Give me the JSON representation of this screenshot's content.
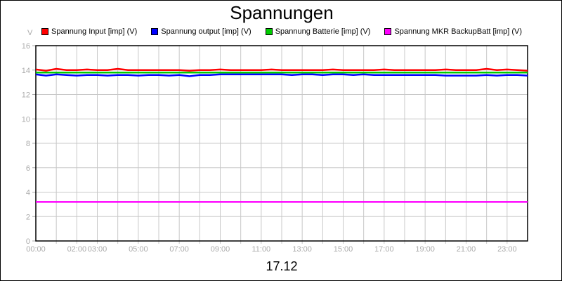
{
  "chart_data": {
    "type": "line",
    "title": "Spannungen",
    "subtitle": "17.12",
    "ylabel": "V",
    "ylim": [
      0,
      16
    ],
    "yticks": [
      "0",
      "2",
      "4",
      "6",
      "8",
      "10",
      "12",
      "14",
      "16"
    ],
    "xlim_hours": [
      0,
      24
    ],
    "xticks": [
      "00:00",
      "02:00",
      "03:00",
      "05:00",
      "07:00",
      "09:00",
      "11:00",
      "13:00",
      "15:00",
      "17:00",
      "19:00",
      "21:00",
      "23:00"
    ],
    "xtick_hours": [
      0,
      2,
      3,
      5,
      7,
      9,
      11,
      13,
      15,
      17,
      19,
      21,
      23
    ],
    "grid": true,
    "legend": "top",
    "x_step_hours": 0.5,
    "series": [
      {
        "name": "Spannung Input [imp] (V)",
        "color": "#ff0000",
        "values": [
          14.05,
          13.95,
          14.1,
          14.0,
          14.0,
          14.05,
          14.0,
          14.0,
          14.1,
          14.0,
          14.0,
          14.0,
          14.0,
          14.0,
          14.0,
          13.95,
          14.0,
          14.0,
          14.05,
          14.0,
          14.0,
          14.0,
          14.0,
          14.05,
          14.0,
          14.0,
          14.0,
          14.0,
          14.0,
          14.05,
          14.0,
          14.0,
          14.0,
          14.0,
          14.05,
          14.0,
          14.0,
          14.0,
          14.0,
          14.0,
          14.05,
          14.0,
          14.0,
          14.0,
          14.1,
          14.0,
          14.05,
          14.0,
          13.95
        ]
      },
      {
        "name": "Spannung output [imp] (V)",
        "color": "#0000ff",
        "values": [
          13.65,
          13.55,
          13.65,
          13.6,
          13.55,
          13.6,
          13.6,
          13.55,
          13.6,
          13.6,
          13.55,
          13.6,
          13.6,
          13.55,
          13.6,
          13.5,
          13.6,
          13.6,
          13.65,
          13.65,
          13.65,
          13.65,
          13.65,
          13.65,
          13.65,
          13.6,
          13.65,
          13.65,
          13.6,
          13.65,
          13.65,
          13.6,
          13.65,
          13.6,
          13.6,
          13.6,
          13.6,
          13.6,
          13.6,
          13.6,
          13.55,
          13.55,
          13.55,
          13.55,
          13.6,
          13.55,
          13.6,
          13.6,
          13.55
        ]
      },
      {
        "name": "Spannung Batterie [imp] (V)",
        "color": "#00cc00",
        "values": [
          13.8,
          13.8,
          13.8,
          13.8,
          13.8,
          13.8,
          13.8,
          13.8,
          13.8,
          13.8,
          13.8,
          13.8,
          13.8,
          13.8,
          13.8,
          13.8,
          13.8,
          13.8,
          13.8,
          13.8,
          13.8,
          13.8,
          13.8,
          13.8,
          13.8,
          13.8,
          13.8,
          13.8,
          13.8,
          13.8,
          13.8,
          13.8,
          13.8,
          13.8,
          13.8,
          13.8,
          13.8,
          13.8,
          13.8,
          13.8,
          13.8,
          13.8,
          13.8,
          13.8,
          13.8,
          13.8,
          13.8,
          13.8,
          13.8
        ]
      },
      {
        "name": "Spannung MKR BackupBatt [imp] (V)",
        "color": "#ff00ff",
        "values": [
          3.2,
          3.2,
          3.2,
          3.2,
          3.2,
          3.2,
          3.2,
          3.2,
          3.2,
          3.2,
          3.2,
          3.2,
          3.2,
          3.2,
          3.2,
          3.2,
          3.2,
          3.2,
          3.2,
          3.2,
          3.2,
          3.2,
          3.2,
          3.2,
          3.2,
          3.2,
          3.2,
          3.2,
          3.2,
          3.2,
          3.2,
          3.2,
          3.2,
          3.2,
          3.2,
          3.2,
          3.2,
          3.2,
          3.2,
          3.2,
          3.2,
          3.2,
          3.2,
          3.2,
          3.2,
          3.2,
          3.2,
          3.2,
          3.2
        ]
      }
    ]
  }
}
